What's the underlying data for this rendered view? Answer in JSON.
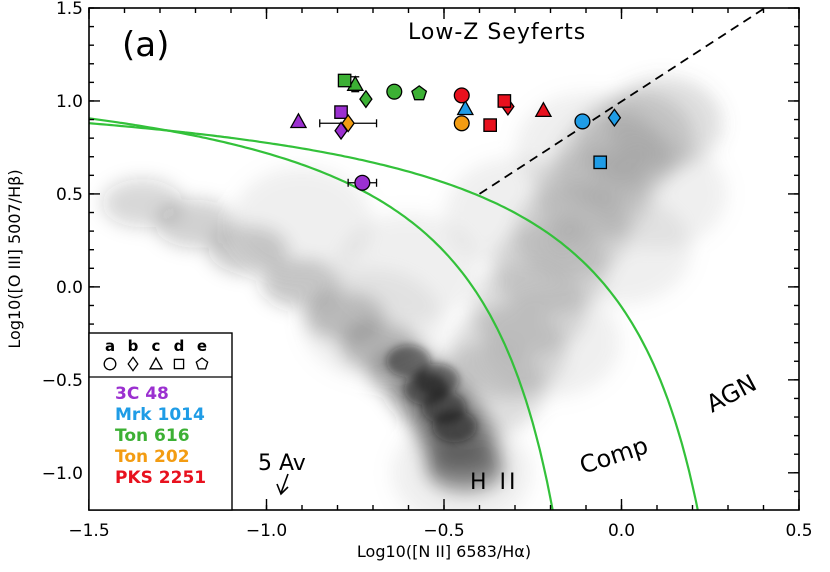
{
  "chart_data": {
    "type": "scatter",
    "panel_label": "(a)",
    "title": "Low-Z Seyferts",
    "xlabel": "Log10([N II] 6583/Hα)",
    "ylabel": "Log10([O III] 5007/Hβ)",
    "xlim": [
      -1.5,
      0.5
    ],
    "ylim": [
      -1.2,
      1.5
    ],
    "x_ticks": [
      -1.5,
      -1.0,
      -0.5,
      0.0,
      0.5
    ],
    "x_tick_labels": [
      "−1.5",
      "−1.0",
      "−0.5",
      "0.0",
      "0.5"
    ],
    "y_ticks": [
      -1.0,
      -0.5,
      0.0,
      0.5,
      1.0,
      1.5
    ],
    "y_tick_labels": [
      "−1.0",
      "−0.5",
      "0.0",
      "0.5",
      "1.0",
      "1.5"
    ],
    "region_labels": [
      "H II",
      "Comp",
      "AGN"
    ],
    "extinction_label": "5 Av",
    "legend": {
      "epoch_letters": [
        "a",
        "b",
        "c",
        "d",
        "e"
      ],
      "epoch_shapes": [
        "circle",
        "diamond",
        "triangle",
        "square",
        "pentagon"
      ],
      "objects": [
        {
          "name": "3C 48",
          "color": "#9b30d0"
        },
        {
          "name": "Mrk 1014",
          "color": "#1f9ce6"
        },
        {
          "name": "Ton 616",
          "color": "#3cb034"
        },
        {
          "name": "Ton 202",
          "color": "#f39c12"
        },
        {
          "name": "PKS 2251",
          "color": "#e8111e"
        }
      ]
    },
    "background": "SDSS emission-line galaxy density (grayscale)",
    "series": [
      {
        "name": "3C 48",
        "color": "#9b30d0",
        "points": [
          {
            "x": -0.73,
            "y": 0.56,
            "shape": "circle",
            "xerr": 0.04
          },
          {
            "x": -0.79,
            "y": 0.84,
            "shape": "diamond"
          },
          {
            "x": -0.91,
            "y": 0.89,
            "shape": "triangle"
          },
          {
            "x": -0.79,
            "y": 0.94,
            "shape": "square"
          }
        ]
      },
      {
        "name": "Mrk 1014",
        "color": "#1f9ce6",
        "points": [
          {
            "x": -0.11,
            "y": 0.89,
            "shape": "circle"
          },
          {
            "x": -0.02,
            "y": 0.91,
            "shape": "diamond"
          },
          {
            "x": -0.44,
            "y": 0.96,
            "shape": "triangle"
          },
          {
            "x": -0.06,
            "y": 0.67,
            "shape": "square"
          }
        ]
      },
      {
        "name": "Ton 616",
        "color": "#3cb034",
        "points": [
          {
            "x": -0.64,
            "y": 1.05,
            "shape": "circle"
          },
          {
            "x": -0.72,
            "y": 1.01,
            "shape": "diamond"
          },
          {
            "x": -0.75,
            "y": 1.09,
            "shape": "triangle",
            "yerr": 0.04
          },
          {
            "x": -0.78,
            "y": 1.11,
            "shape": "square"
          },
          {
            "x": -0.57,
            "y": 1.04,
            "shape": "pentagon"
          }
        ]
      },
      {
        "name": "Ton 202",
        "color": "#f39c12",
        "points": [
          {
            "x": -0.45,
            "y": 0.88,
            "shape": "circle"
          },
          {
            "x": -0.77,
            "y": 0.88,
            "shape": "diamond",
            "xerr": 0.08
          }
        ]
      },
      {
        "name": "PKS 2251",
        "color": "#e8111e",
        "points": [
          {
            "x": -0.45,
            "y": 1.03,
            "shape": "circle"
          },
          {
            "x": -0.32,
            "y": 0.97,
            "shape": "diamond"
          },
          {
            "x": -0.22,
            "y": 0.95,
            "shape": "triangle"
          },
          {
            "x": -0.33,
            "y": 1.0,
            "shape": "square"
          },
          {
            "x": -0.37,
            "y": 0.87,
            "shape": "square"
          }
        ]
      }
    ]
  }
}
